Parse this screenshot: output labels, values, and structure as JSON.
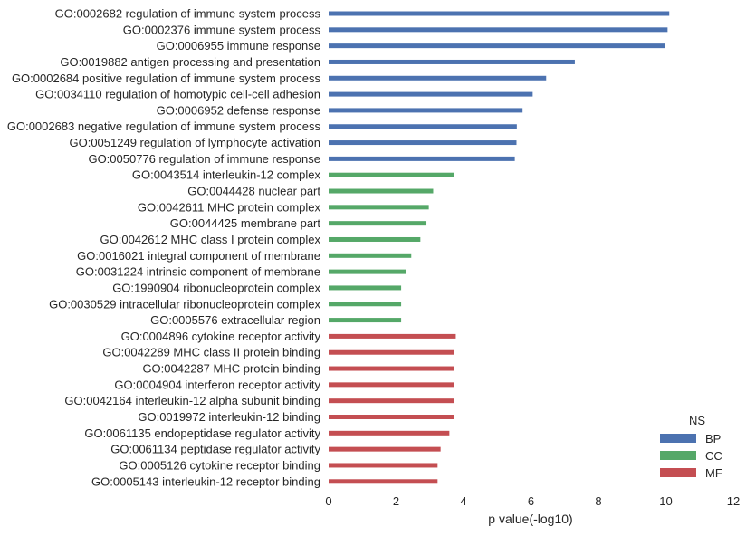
{
  "chart_data": {
    "type": "bar",
    "orientation": "horizontal",
    "xlabel": "p value(-log10)",
    "ylabel": "",
    "title": "",
    "xlim": [
      0,
      12
    ],
    "xticks": [
      0,
      2,
      4,
      6,
      8,
      10,
      12
    ],
    "grid": false,
    "legend": {
      "title": "NS",
      "placement": "bottom-right",
      "entries": [
        "BP",
        "CC",
        "MF"
      ]
    },
    "colors": {
      "BP": "#4c72b0",
      "CC": "#55a868",
      "MF": "#c44e52"
    },
    "bars": [
      {
        "label": "GO:0002682 regulation of immune system process",
        "value": 10.1,
        "group": "BP"
      },
      {
        "label": "GO:0002376 immune system process",
        "value": 10.05,
        "group": "BP"
      },
      {
        "label": "GO:0006955 immune response",
        "value": 9.97,
        "group": "BP"
      },
      {
        "label": "GO:0019882 antigen processing and presentation",
        "value": 7.3,
        "group": "BP"
      },
      {
        "label": "GO:0002684 positive regulation of immune system process",
        "value": 6.45,
        "group": "BP"
      },
      {
        "label": "GO:0034110 regulation of homotypic cell-cell adhesion",
        "value": 6.05,
        "group": "BP"
      },
      {
        "label": "GO:0006952 defense response",
        "value": 5.75,
        "group": "BP"
      },
      {
        "label": "GO:0002683 negative regulation of immune system process",
        "value": 5.58,
        "group": "BP"
      },
      {
        "label": "GO:0051249 regulation of lymphocyte activation",
        "value": 5.57,
        "group": "BP"
      },
      {
        "label": "GO:0050776 regulation of immune response",
        "value": 5.52,
        "group": "BP"
      },
      {
        "label": "GO:0043514 interleukin-12 complex",
        "value": 3.72,
        "group": "CC"
      },
      {
        "label": "GO:0044428 nuclear part",
        "value": 3.1,
        "group": "CC"
      },
      {
        "label": "GO:0042611 MHC protein complex",
        "value": 2.97,
        "group": "CC"
      },
      {
        "label": "GO:0044425 membrane part",
        "value": 2.9,
        "group": "CC"
      },
      {
        "label": "GO:0042612 MHC class I protein complex",
        "value": 2.72,
        "group": "CC"
      },
      {
        "label": "GO:0016021 integral component of membrane",
        "value": 2.45,
        "group": "CC"
      },
      {
        "label": "GO:0031224 intrinsic component of membrane",
        "value": 2.3,
        "group": "CC"
      },
      {
        "label": "GO:1990904 ribonucleoprotein complex",
        "value": 2.15,
        "group": "CC"
      },
      {
        "label": "GO:0030529 intracellular ribonucleoprotein complex",
        "value": 2.15,
        "group": "CC"
      },
      {
        "label": "GO:0005576 extracellular region",
        "value": 2.15,
        "group": "CC"
      },
      {
        "label": "GO:0004896 cytokine receptor activity",
        "value": 3.77,
        "group": "MF"
      },
      {
        "label": "GO:0042289 MHC class II protein binding",
        "value": 3.72,
        "group": "MF"
      },
      {
        "label": "GO:0042287 MHC protein binding",
        "value": 3.72,
        "group": "MF"
      },
      {
        "label": "GO:0004904 interferon receptor activity",
        "value": 3.72,
        "group": "MF"
      },
      {
        "label": "GO:0042164 interleukin-12 alpha subunit binding",
        "value": 3.72,
        "group": "MF"
      },
      {
        "label": "GO:0019972 interleukin-12 binding",
        "value": 3.72,
        "group": "MF"
      },
      {
        "label": "GO:0061135 endopeptidase regulator activity",
        "value": 3.58,
        "group": "MF"
      },
      {
        "label": "GO:0061134 peptidase regulator activity",
        "value": 3.32,
        "group": "MF"
      },
      {
        "label": "GO:0005126 cytokine receptor binding",
        "value": 3.23,
        "group": "MF"
      },
      {
        "label": "GO:0005143 interleukin-12 receptor binding",
        "value": 3.23,
        "group": "MF"
      }
    ]
  }
}
